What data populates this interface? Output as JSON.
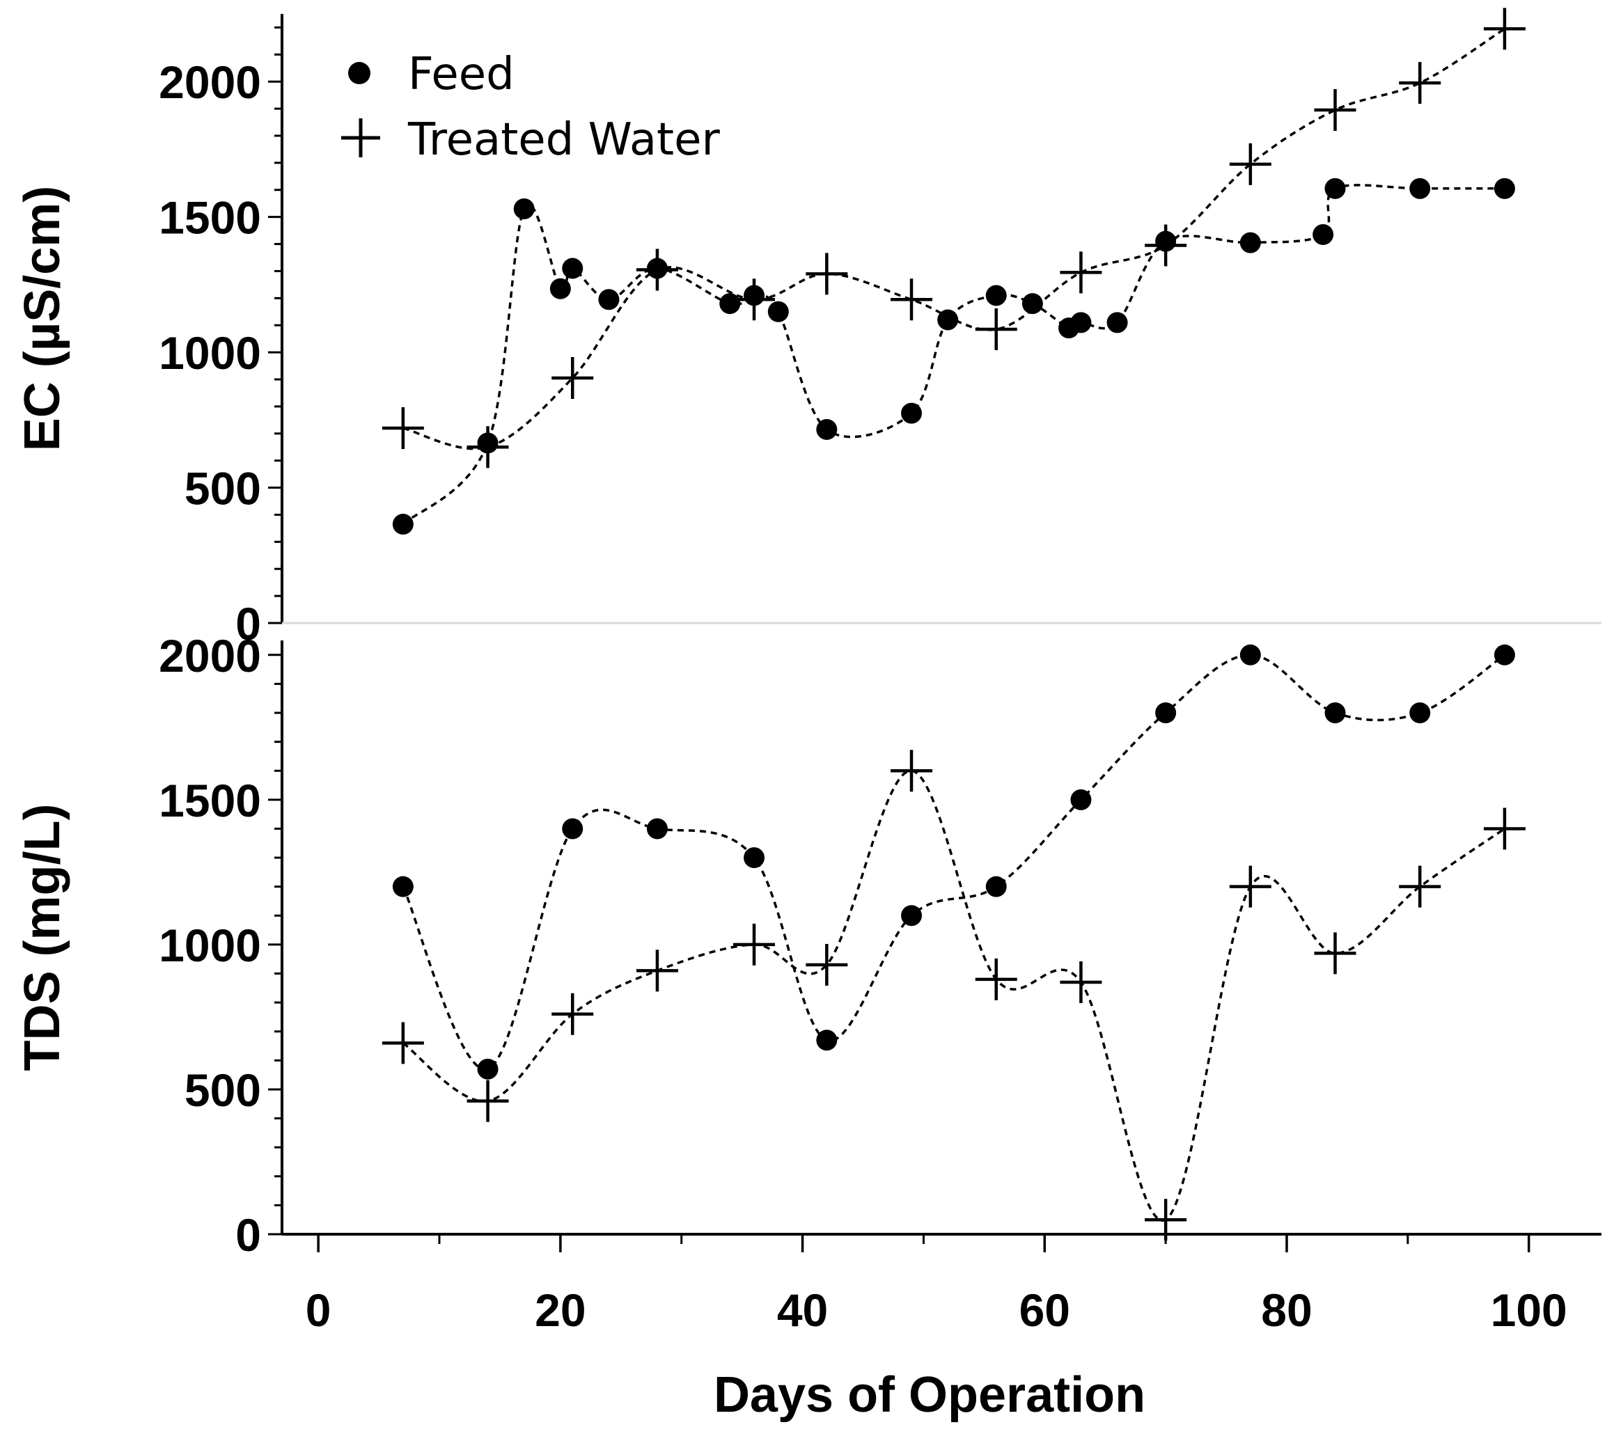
{
  "chart_data": {
    "type": "line",
    "xlabel": "Days of Operation",
    "xlim": [
      -3,
      106
    ],
    "xticks": [
      0,
      20,
      40,
      60,
      80,
      100
    ],
    "legend": {
      "position": "top-left",
      "entries": [
        {
          "label": "Feed",
          "marker": "circle"
        },
        {
          "label": "Treated Water",
          "marker": "plus"
        }
      ]
    },
    "panels": [
      {
        "id": "ec",
        "ylabel": "EC (µS/cm)",
        "ylim": [
          0,
          2250
        ],
        "yticks": [
          0,
          500,
          1000,
          1500,
          2000
        ],
        "series": [
          {
            "name": "Feed",
            "marker": "circle",
            "x": [
              7,
              14,
              17,
              20,
              21,
              24,
              28,
              34,
              36,
              38,
              42,
              49,
              52,
              56,
              59,
              62,
              63,
              66,
              70,
              77,
              83,
              84,
              91,
              98
            ],
            "y": [
              365,
              665,
              1530,
              1235,
              1310,
              1195,
              1310,
              1180,
              1210,
              1150,
              715,
              775,
              1120,
              1210,
              1180,
              1090,
              1110,
              1110,
              1410,
              1405,
              1435,
              1605,
              1605,
              1605
            ]
          },
          {
            "name": "Treated Water",
            "marker": "plus",
            "x": [
              7,
              14,
              21,
              28,
              36,
              42,
              49,
              56,
              63,
              70,
              77,
              84,
              91,
              98
            ],
            "y": [
              720,
              650,
              905,
              1305,
              1195,
              1290,
              1195,
              1085,
              1295,
              1395,
              1695,
              1895,
              1995,
              2195
            ]
          }
        ]
      },
      {
        "id": "tds",
        "ylabel": "TDS (mg/L)",
        "ylim": [
          0,
          2050
        ],
        "yticks": [
          0,
          500,
          1000,
          1500,
          2000
        ],
        "series": [
          {
            "name": "Feed",
            "marker": "circle",
            "x": [
              7,
              14,
              21,
              28,
              36,
              42,
              49,
              56,
              63,
              70,
              77,
              84,
              91,
              98
            ],
            "y": [
              1200,
              570,
              1400,
              1400,
              1300,
              670,
              1100,
              1200,
              1500,
              1800,
              2000,
              1800,
              1800,
              2000
            ]
          },
          {
            "name": "Treated Water",
            "marker": "plus",
            "x": [
              7,
              14,
              21,
              28,
              36,
              42,
              49,
              56,
              63,
              70,
              77,
              84,
              91,
              98
            ],
            "y": [
              660,
              460,
              760,
              910,
              1000,
              930,
              1600,
              880,
              870,
              50,
              1200,
              970,
              1200,
              1400
            ]
          }
        ]
      }
    ]
  }
}
